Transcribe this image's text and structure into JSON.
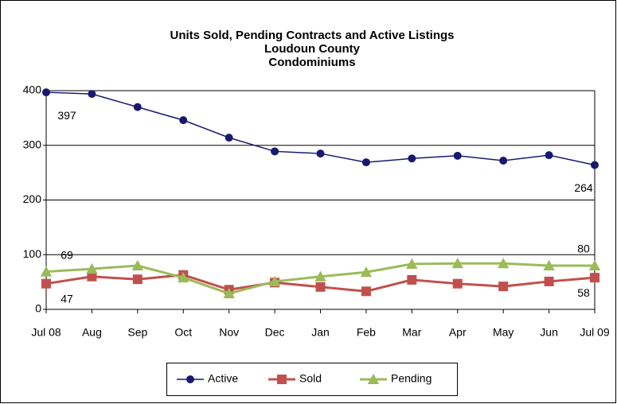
{
  "chart_data": {
    "type": "line",
    "title": "Units Sold, Pending Contracts and Active Listings",
    "subtitle": [
      "Loudoun County",
      "Condominiums"
    ],
    "categories": [
      "Jul 08",
      "Aug",
      "Sep",
      "Oct",
      "Nov",
      "Dec",
      "Jan",
      "Feb",
      "Mar",
      "Apr",
      "May",
      "Jun",
      "Jul 09"
    ],
    "series": [
      {
        "name": "Active",
        "color": "#191970",
        "marker": "circle",
        "data_labels": [
          0,
          12
        ],
        "values": [
          397,
          394,
          370,
          346,
          314,
          289,
          285,
          269,
          276,
          281,
          272,
          282,
          264
        ]
      },
      {
        "name": "Sold",
        "color": "#c0504d",
        "marker": "square",
        "data_labels": [
          0,
          12
        ],
        "values": [
          47,
          60,
          55,
          63,
          36,
          49,
          41,
          33,
          54,
          47,
          42,
          51,
          58
        ]
      },
      {
        "name": "Pending",
        "color": "#9bbb59",
        "marker": "triangle",
        "data_labels": [
          0,
          12
        ],
        "values": [
          69,
          74,
          80,
          58,
          29,
          51,
          60,
          68,
          83,
          84,
          84,
          80,
          80
        ]
      }
    ],
    "ylim": [
      0,
      400
    ],
    "yticks": [
      0,
      100,
      200,
      300,
      400
    ],
    "grid": true,
    "legend": "bottom"
  }
}
